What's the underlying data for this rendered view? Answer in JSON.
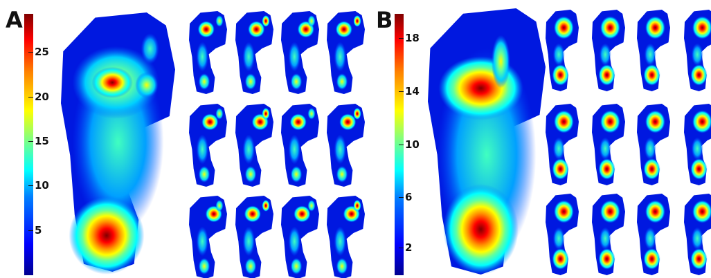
{
  "panels": [
    {
      "label": "A",
      "colorbar_ticks": [
        "25",
        "20",
        "15",
        "10",
        "5"
      ],
      "colorbar_values": [
        25,
        20,
        15,
        10,
        5
      ],
      "colorbar_range": [
        0,
        29
      ]
    },
    {
      "label": "B",
      "colorbar_ticks": [
        "18",
        "14",
        "10",
        "6",
        "2"
      ],
      "colorbar_values": [
        18,
        14,
        10,
        6,
        2
      ],
      "colorbar_range": [
        0,
        20
      ]
    }
  ],
  "colormap": "jet",
  "colors": {
    "background": "#ffffff",
    "low": "#00008f",
    "mid": "#00ffff",
    "high": "#800000"
  }
}
